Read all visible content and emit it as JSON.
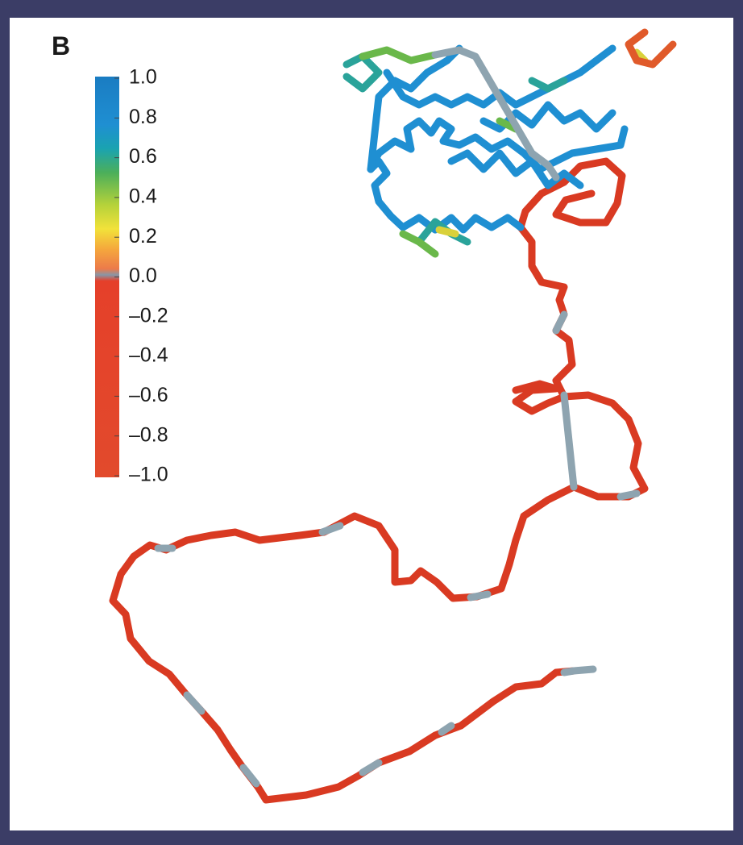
{
  "panel_label": "B",
  "colorbar": {
    "ticks": [
      "1.0",
      "0.8",
      "0.6",
      "0.4",
      "0.2",
      "0.0",
      "–0.2",
      "–0.4",
      "–0.6",
      "–0.8",
      "–1.0"
    ]
  }
}
